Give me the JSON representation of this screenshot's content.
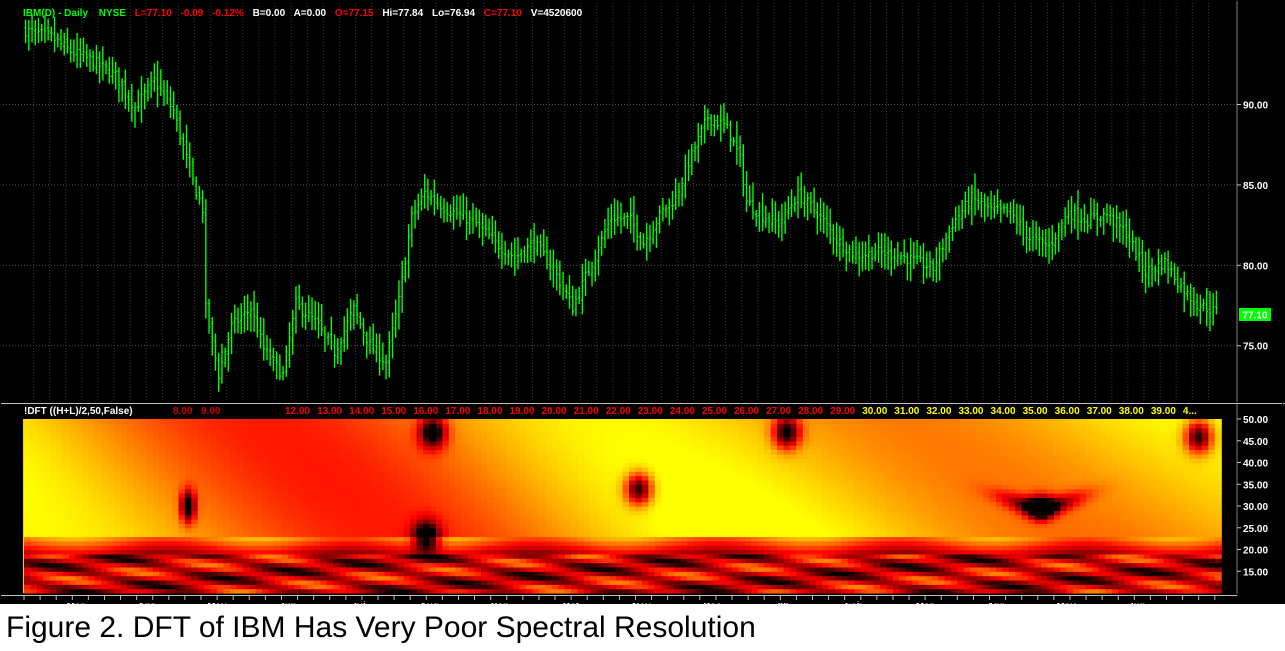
{
  "header": {
    "symbol": "IBM(D) - Daily",
    "exchange": "NYSE",
    "last": "L=77.10",
    "change": "-0.09",
    "change_pct": "-0.12%",
    "bid": "B=0.00",
    "ask": "A=0.00",
    "open": "O=77.15",
    "high": "Hi=77.84",
    "low": "Lo=76.94",
    "close": "C=77.10",
    "volume": "V=4520600"
  },
  "last_price_tag": "77.10",
  "caption": "Figure 2.  DFT of IBM Has Very Poor Spectral Resolution",
  "colors": {
    "background": "#000000",
    "bars": "#00ff00",
    "axis_panel": "#000000",
    "axis_text": "#ffffff",
    "grid": "#3a3a3a",
    "header_green": "#00ff00",
    "header_red": "#ff0000",
    "header_white": "#ffffff",
    "indicator_yellow": "#ffff00",
    "indicator_red": "#ff0000"
  },
  "chart_data": [
    {
      "type": "ohlc",
      "ylim": [
        71.5,
        96.5
      ],
      "y_ticks": [
        "90.00",
        "85.00",
        "80.00",
        "75.00"
      ],
      "y_tick_values": [
        90,
        85,
        80,
        75
      ],
      "close_anchors": [
        [
          0,
          94.6
        ],
        [
          8,
          94.2
        ],
        [
          14,
          93.3
        ],
        [
          20,
          92.8
        ],
        [
          28,
          91.8
        ],
        [
          34,
          89.8
        ],
        [
          40,
          91.5
        ],
        [
          46,
          89.6
        ],
        [
          52,
          85.2
        ],
        [
          55,
          83.5
        ],
        [
          56,
          77.3
        ],
        [
          60,
          73.2
        ],
        [
          64,
          76.2
        ],
        [
          70,
          77.3
        ],
        [
          74,
          74.8
        ],
        [
          80,
          73.2
        ],
        [
          84,
          77.6
        ],
        [
          90,
          76.5
        ],
        [
          96,
          74.6
        ],
        [
          102,
          77.3
        ],
        [
          107,
          75.0
        ],
        [
          112,
          74.0
        ],
        [
          116,
          77.8
        ],
        [
          120,
          83.0
        ],
        [
          124,
          84.5
        ],
        [
          130,
          83.6
        ],
        [
          136,
          83.0
        ],
        [
          140,
          82.6
        ],
        [
          146,
          81.4
        ],
        [
          152,
          80.5
        ],
        [
          158,
          81.4
        ],
        [
          164,
          79.8
        ],
        [
          170,
          77.4
        ],
        [
          176,
          80.2
        ],
        [
          182,
          83.0
        ],
        [
          188,
          82.8
        ],
        [
          192,
          81.4
        ],
        [
          198,
          83.4
        ],
        [
          202,
          84.2
        ],
        [
          206,
          86.4
        ],
        [
          212,
          89.2
        ],
        [
          218,
          88.6
        ],
        [
          222,
          86.6
        ],
        [
          224,
          84.0
        ],
        [
          228,
          83.2
        ],
        [
          234,
          82.6
        ],
        [
          240,
          84.4
        ],
        [
          246,
          83.3
        ],
        [
          252,
          81.6
        ],
        [
          258,
          80.6
        ],
        [
          264,
          80.8
        ],
        [
          270,
          80.7
        ],
        [
          276,
          80.3
        ],
        [
          282,
          79.8
        ],
        [
          288,
          82.6
        ],
        [
          294,
          84.2
        ],
        [
          300,
          83.4
        ],
        [
          306,
          83.3
        ],
        [
          312,
          81.7
        ],
        [
          318,
          81.2
        ],
        [
          324,
          83.3
        ],
        [
          330,
          82.8
        ],
        [
          336,
          83.2
        ],
        [
          342,
          82.0
        ],
        [
          348,
          79.6
        ],
        [
          354,
          80.2
        ],
        [
          360,
          78.4
        ],
        [
          364,
          77.6
        ],
        [
          370,
          77.1
        ]
      ],
      "last_close": 77.1
    },
    {
      "type": "heatmap",
      "title": "!DFT  ((H+L)/2,50,False)",
      "ylim": [
        10,
        50
      ],
      "y_ticks": [
        "50.00",
        "45.00",
        "40.00",
        "35.00",
        "30.00",
        "25.00",
        "20.00",
        "15.00"
      ],
      "y_tick_values": [
        50,
        45,
        40,
        35,
        30,
        25,
        20,
        15
      ],
      "x_markers": [
        "8.00",
        "9.00",
        "12.00",
        "13.00",
        "14.00",
        "15.00",
        "16.00",
        "17.00",
        "18.00",
        "19.00",
        "20.00",
        "21.00",
        "22.00",
        "23.00",
        "24.00",
        "25.00",
        "26.00",
        "27.00",
        "28.00",
        "29.00",
        "30.00",
        "31.00",
        "32.00",
        "33.00",
        "34.00",
        "35.00",
        "36.00",
        "37.00",
        "38.00",
        "39.00",
        "4..."
      ],
      "x_marker_colors": [
        "#cc0000",
        "#cc0000",
        "#ff0000",
        "#ff0000",
        "#ff0000",
        "#ff0000",
        "#ff0000",
        "#ff0000",
        "#ff0000",
        "#ff0000",
        "#ff0000",
        "#ff0000",
        "#ff0000",
        "#ff0000",
        "#ff0000",
        "#ff0000",
        "#ff0000",
        "#ff0000",
        "#ff0000",
        "#ff0000",
        "#ffff00",
        "#ffff00",
        "#ffff00",
        "#ffff00",
        "#ffff00",
        "#ffff00",
        "#ffff00",
        "#ffff00",
        "#ffff00",
        "#ffff00",
        "#ffff00"
      ],
      "colormap": [
        "#000000",
        "#ff0000",
        "#ffff00"
      ],
      "features": [
        {
          "day": 50,
          "period": 30,
          "kind": "dark-streak"
        },
        {
          "day": 126,
          "period": 47,
          "kind": "dark-spot"
        },
        {
          "day": 124,
          "period": 23,
          "kind": "dark-spot"
        },
        {
          "day": 190,
          "period": 34,
          "kind": "dark-spot"
        },
        {
          "day": 236,
          "period": 47,
          "kind": "dark-spot"
        },
        {
          "day": 315,
          "period": 30,
          "kind": "dark-arc"
        },
        {
          "day": 364,
          "period": 46,
          "kind": "dark-spot"
        }
      ]
    }
  ],
  "x_axis": {
    "months": [
      "Mar",
      "Apr",
      "May",
      "Jun",
      "Jul",
      "Aug",
      "Sep",
      "Oct",
      "Nov",
      "Dec",
      "06",
      "Feb",
      "Mar",
      "Apr",
      "May",
      "Jun"
    ]
  }
}
